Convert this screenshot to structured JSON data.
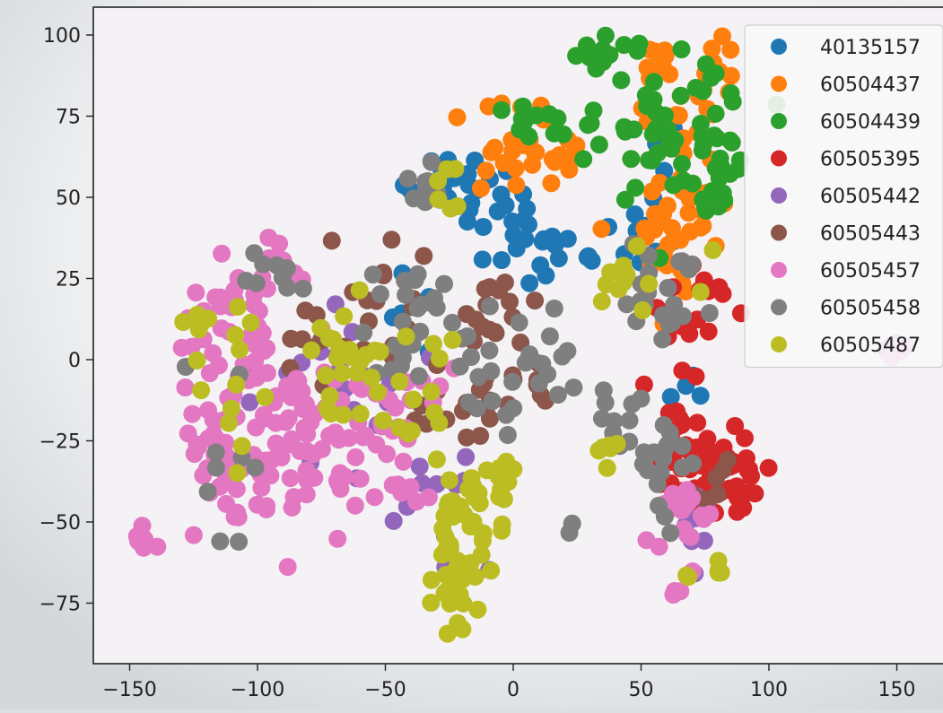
{
  "chart_data": {
    "type": "scatter",
    "title": "",
    "xlabel": "",
    "ylabel": "",
    "xlim": [
      -155,
      165
    ],
    "ylim": [
      -95,
      105
    ],
    "x_ticks": [
      -150,
      -100,
      -50,
      0,
      50,
      100,
      150
    ],
    "y_ticks": [
      -75,
      -50,
      -25,
      0,
      25,
      50,
      75,
      100
    ],
    "grid": false,
    "legend_position": "top-right",
    "series": [
      {
        "name": "40135157",
        "color": "#1f77b4",
        "clusters": [
          {
            "cx": -25,
            "cy": 55,
            "sx": 8,
            "sy": 6,
            "n": 20
          },
          {
            "cx": -10,
            "cy": 50,
            "sx": 6,
            "sy": 6,
            "n": 10
          },
          {
            "cx": 15,
            "cy": 35,
            "sx": 12,
            "sy": 7,
            "n": 22
          },
          {
            "cx": 55,
            "cy": 35,
            "sx": 8,
            "sy": 5,
            "n": 10
          },
          {
            "cx": -45,
            "cy": 15,
            "sx": 8,
            "sy": 5,
            "n": 6
          },
          {
            "cx": 70,
            "cy": -10,
            "sx": 6,
            "sy": 4,
            "n": 4
          },
          {
            "cx": 60,
            "cy": 65,
            "sx": 10,
            "sy": 8,
            "n": 6
          }
        ]
      },
      {
        "name": "60504437",
        "color": "#ff7f0e",
        "clusters": [
          {
            "cx": 62,
            "cy": 45,
            "sx": 10,
            "sy": 12,
            "n": 40
          },
          {
            "cx": 55,
            "cy": 88,
            "sx": 8,
            "sy": 7,
            "n": 14
          },
          {
            "cx": 80,
            "cy": 85,
            "sx": 6,
            "sy": 8,
            "n": 14
          },
          {
            "cx": 5,
            "cy": 65,
            "sx": 12,
            "sy": 8,
            "n": 22
          },
          {
            "cx": 25,
            "cy": 60,
            "sx": 6,
            "sy": 5,
            "n": 6
          }
        ]
      },
      {
        "name": "60504439",
        "color": "#2ca02c",
        "clusters": [
          {
            "cx": 60,
            "cy": 70,
            "sx": 18,
            "sy": 12,
            "n": 60
          },
          {
            "cx": 35,
            "cy": 95,
            "sx": 6,
            "sy": 3,
            "n": 10
          },
          {
            "cx": 10,
            "cy": 72,
            "sx": 6,
            "sy": 4,
            "n": 10
          },
          {
            "cx": 80,
            "cy": 57,
            "sx": 5,
            "sy": 6,
            "n": 14
          }
        ]
      },
      {
        "name": "60505395",
        "color": "#d62728",
        "clusters": [
          {
            "cx": 80,
            "cy": -35,
            "sx": 9,
            "sy": 9,
            "n": 55
          },
          {
            "cx": 65,
            "cy": -25,
            "sx": 6,
            "sy": 8,
            "n": 16
          },
          {
            "cx": 70,
            "cy": 15,
            "sx": 8,
            "sy": 10,
            "n": 14
          }
        ]
      },
      {
        "name": "60505442",
        "color": "#9467bd",
        "clusters": [
          {
            "cx": -70,
            "cy": -10,
            "sx": 20,
            "sy": 20,
            "n": 20
          },
          {
            "cx": -35,
            "cy": -40,
            "sx": 15,
            "sy": 12,
            "n": 10
          },
          {
            "cx": 70,
            "cy": -55,
            "sx": 8,
            "sy": 8,
            "n": 8
          },
          {
            "cx": 148,
            "cy": 2,
            "sx": 4,
            "sy": 2,
            "n": 6
          }
        ]
      },
      {
        "name": "60505443",
        "color": "#8c564b",
        "clusters": [
          {
            "cx": -50,
            "cy": 12,
            "sx": 10,
            "sy": 10,
            "n": 20
          },
          {
            "cx": -5,
            "cy": 10,
            "sx": 8,
            "sy": 8,
            "n": 18
          },
          {
            "cx": -20,
            "cy": -15,
            "sx": 10,
            "sy": 8,
            "n": 16
          },
          {
            "cx": 10,
            "cy": -5,
            "sx": 6,
            "sy": 6,
            "n": 8
          },
          {
            "cx": -80,
            "cy": 5,
            "sx": 6,
            "sy": 6,
            "n": 8
          },
          {
            "cx": 75,
            "cy": -40,
            "sx": 6,
            "sy": 6,
            "n": 8
          }
        ]
      },
      {
        "name": "60505457",
        "color": "#e377c2",
        "clusters": [
          {
            "cx": -115,
            "cy": -30,
            "sx": 8,
            "sy": 15,
            "n": 40
          },
          {
            "cx": -85,
            "cy": -20,
            "sx": 12,
            "sy": 12,
            "n": 50
          },
          {
            "cx": -105,
            "cy": 15,
            "sx": 12,
            "sy": 10,
            "n": 35
          },
          {
            "cx": -60,
            "cy": -40,
            "sx": 15,
            "sy": 10,
            "n": 30
          },
          {
            "cx": -45,
            "cy": -10,
            "sx": 10,
            "sy": 8,
            "n": 20
          },
          {
            "cx": 65,
            "cy": -50,
            "sx": 6,
            "sy": 10,
            "n": 22
          },
          {
            "cx": -145,
            "cy": -55,
            "sx": 3,
            "sy": 2,
            "n": 6
          },
          {
            "cx": -90,
            "cy": 32,
            "sx": 4,
            "sy": 3,
            "n": 6
          },
          {
            "cx": 148,
            "cy": 2,
            "sx": 3,
            "sy": 2,
            "n": 4
          }
        ]
      },
      {
        "name": "60505458",
        "color": "#7f7f7f",
        "clusters": [
          {
            "cx": -35,
            "cy": 10,
            "sx": 15,
            "sy": 10,
            "n": 30
          },
          {
            "cx": 0,
            "cy": -5,
            "sx": 12,
            "sy": 8,
            "n": 20
          },
          {
            "cx": 60,
            "cy": 20,
            "sx": 10,
            "sy": 8,
            "n": 22
          },
          {
            "cx": -30,
            "cy": 50,
            "sx": 6,
            "sy": 6,
            "n": 10
          },
          {
            "cx": 60,
            "cy": -35,
            "sx": 8,
            "sy": 10,
            "n": 18
          },
          {
            "cx": 40,
            "cy": -20,
            "sx": 6,
            "sy": 10,
            "n": 10
          },
          {
            "cx": -90,
            "cy": 25,
            "sx": 10,
            "sy": 5,
            "n": 8
          },
          {
            "cx": -110,
            "cy": -30,
            "sx": 8,
            "sy": 15,
            "n": 8
          },
          {
            "cx": -128,
            "cy": -2,
            "sx": 1,
            "sy": 1,
            "n": 1
          },
          {
            "cx": 20,
            "cy": -55,
            "sx": 2,
            "sy": 2,
            "n": 2
          }
        ]
      },
      {
        "name": "60505487",
        "color": "#bcbd22",
        "clusters": [
          {
            "cx": -25,
            "cy": -55,
            "sx": 6,
            "sy": 10,
            "n": 25
          },
          {
            "cx": -25,
            "cy": -70,
            "sx": 5,
            "sy": 5,
            "n": 15
          },
          {
            "cx": -15,
            "cy": -45,
            "sx": 5,
            "sy": 6,
            "n": 10
          },
          {
            "cx": -5,
            "cy": -35,
            "sx": 3,
            "sy": 8,
            "n": 12
          },
          {
            "cx": -65,
            "cy": 0,
            "sx": 10,
            "sy": 8,
            "n": 20
          },
          {
            "cx": -110,
            "cy": -5,
            "sx": 8,
            "sy": 15,
            "n": 14
          },
          {
            "cx": -40,
            "cy": -10,
            "sx": 15,
            "sy": 10,
            "n": 18
          },
          {
            "cx": 45,
            "cy": 25,
            "sx": 15,
            "sy": 5,
            "n": 12
          },
          {
            "cx": -25,
            "cy": 55,
            "sx": 6,
            "sy": 5,
            "n": 6
          },
          {
            "cx": -125,
            "cy": 12,
            "sx": 5,
            "sy": 3,
            "n": 4
          },
          {
            "cx": 35,
            "cy": -30,
            "sx": 3,
            "sy": 5,
            "n": 6
          },
          {
            "cx": 75,
            "cy": -65,
            "sx": 6,
            "sy": 3,
            "n": 6
          },
          {
            "cx": -22,
            "cy": -83,
            "sx": 2,
            "sy": 2,
            "n": 3
          }
        ]
      }
    ]
  }
}
